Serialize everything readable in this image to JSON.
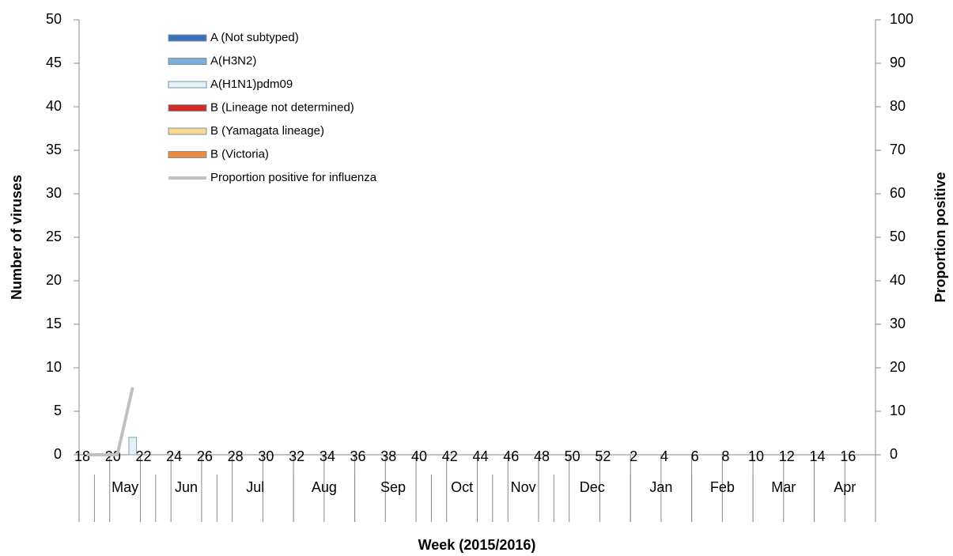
{
  "chart_data": {
    "type": "bar",
    "x_label": "Week (2015/2016)",
    "y_label": "Number of viruses",
    "y2_label": "Proportion positive",
    "categories": [
      18,
      null,
      20,
      null,
      22,
      null,
      24,
      null,
      26,
      null,
      28,
      null,
      30,
      null,
      32,
      null,
      34,
      null,
      36,
      null,
      38,
      null,
      40,
      null,
      42,
      null,
      44,
      null,
      46,
      null,
      48,
      null,
      50,
      null,
      52,
      null,
      2,
      null,
      4,
      null,
      6,
      null,
      8,
      null,
      10,
      null,
      12,
      null,
      14,
      null,
      16,
      null
    ],
    "months": [
      "May",
      "Jun",
      "Jul",
      "Aug",
      "Sep",
      "Oct",
      "Nov",
      "Dec",
      "Jan",
      "Feb",
      "Mar",
      "Apr"
    ],
    "series": [
      {
        "name": "A (Not subtyped)",
        "type": "bar",
        "color": "#3d6fb6",
        "values": [
          0,
          0,
          0,
          0,
          null,
          null,
          null,
          null,
          null,
          null,
          null,
          null,
          null,
          null,
          null,
          null,
          null,
          null,
          null,
          null,
          null,
          null,
          null,
          null,
          null,
          null,
          null,
          null,
          null,
          null,
          null,
          null,
          null,
          null,
          null,
          null,
          null,
          null,
          null,
          null,
          null,
          null,
          null,
          null,
          null,
          null,
          null,
          null,
          null,
          null,
          null,
          null
        ]
      },
      {
        "name": "A(H3N2)",
        "type": "bar",
        "color": "#79aedb",
        "values": [
          0,
          0,
          0,
          0,
          null,
          null,
          null,
          null,
          null,
          null,
          null,
          null,
          null,
          null,
          null,
          null,
          null,
          null,
          null,
          null,
          null,
          null,
          null,
          null,
          null,
          null,
          null,
          null,
          null,
          null,
          null,
          null,
          null,
          null,
          null,
          null,
          null,
          null,
          null,
          null,
          null,
          null,
          null,
          null,
          null,
          null,
          null,
          null,
          null,
          null,
          null,
          null
        ]
      },
      {
        "name": "A(H1N1)pdm09",
        "type": "bar",
        "color": "#e2f1fa",
        "values": [
          0,
          0,
          0,
          2,
          null,
          null,
          null,
          null,
          null,
          null,
          null,
          null,
          null,
          null,
          null,
          null,
          null,
          null,
          null,
          null,
          null,
          null,
          null,
          null,
          null,
          null,
          null,
          null,
          null,
          null,
          null,
          null,
          null,
          null,
          null,
          null,
          null,
          null,
          null,
          null,
          null,
          null,
          null,
          null,
          null,
          null,
          null,
          null,
          null,
          null,
          null,
          null
        ]
      },
      {
        "name": "B (Lineage not determined)",
        "type": "bar",
        "color": "#d42a26",
        "values": [
          0,
          0,
          0,
          0,
          null,
          null,
          null,
          null,
          null,
          null,
          null,
          null,
          null,
          null,
          null,
          null,
          null,
          null,
          null,
          null,
          null,
          null,
          null,
          null,
          null,
          null,
          null,
          null,
          null,
          null,
          null,
          null,
          null,
          null,
          null,
          null,
          null,
          null,
          null,
          null,
          null,
          null,
          null,
          null,
          null,
          null,
          null,
          null,
          null,
          null,
          null,
          null
        ]
      },
      {
        "name": "B (Yamagata lineage)",
        "type": "bar",
        "color": "#f8d88e",
        "values": [
          0,
          0,
          0,
          0,
          null,
          null,
          null,
          null,
          null,
          null,
          null,
          null,
          null,
          null,
          null,
          null,
          null,
          null,
          null,
          null,
          null,
          null,
          null,
          null,
          null,
          null,
          null,
          null,
          null,
          null,
          null,
          null,
          null,
          null,
          null,
          null,
          null,
          null,
          null,
          null,
          null,
          null,
          null,
          null,
          null,
          null,
          null,
          null,
          null,
          null,
          null,
          null
        ]
      },
      {
        "name": "B (Victoria)",
        "type": "bar",
        "color": "#ee8a3e",
        "values": [
          0,
          0,
          0,
          0,
          null,
          null,
          null,
          null,
          null,
          null,
          null,
          null,
          null,
          null,
          null,
          null,
          null,
          null,
          null,
          null,
          null,
          null,
          null,
          null,
          null,
          null,
          null,
          null,
          null,
          null,
          null,
          null,
          null,
          null,
          null,
          null,
          null,
          null,
          null,
          null,
          null,
          null,
          null,
          null,
          null,
          null,
          null,
          null,
          null,
          null,
          null,
          null
        ]
      },
      {
        "name": "Proportion positive for influenza",
        "type": "line",
        "axis": "y2",
        "color": "#bfbfbf",
        "values": [
          0,
          0,
          0,
          15.5,
          null,
          null,
          null,
          null,
          null,
          null,
          null,
          null,
          null,
          null,
          null,
          null,
          null,
          null,
          null,
          null,
          null,
          null,
          null,
          null,
          null,
          null,
          null,
          null,
          null,
          null,
          null,
          null,
          null,
          null,
          null,
          null,
          null,
          null,
          null,
          null,
          null,
          null,
          null,
          null,
          null,
          null,
          null,
          null,
          null,
          null,
          null,
          null
        ]
      }
    ],
    "ylim": [
      0,
      50
    ],
    "yticks": [
      0,
      5,
      10,
      15,
      20,
      25,
      30,
      35,
      40,
      45,
      50
    ],
    "y2lim": [
      0,
      100
    ],
    "y2ticks": [
      0,
      10,
      20,
      30,
      40,
      50,
      60,
      70,
      80,
      90,
      100
    ],
    "legend": "upper-left"
  }
}
